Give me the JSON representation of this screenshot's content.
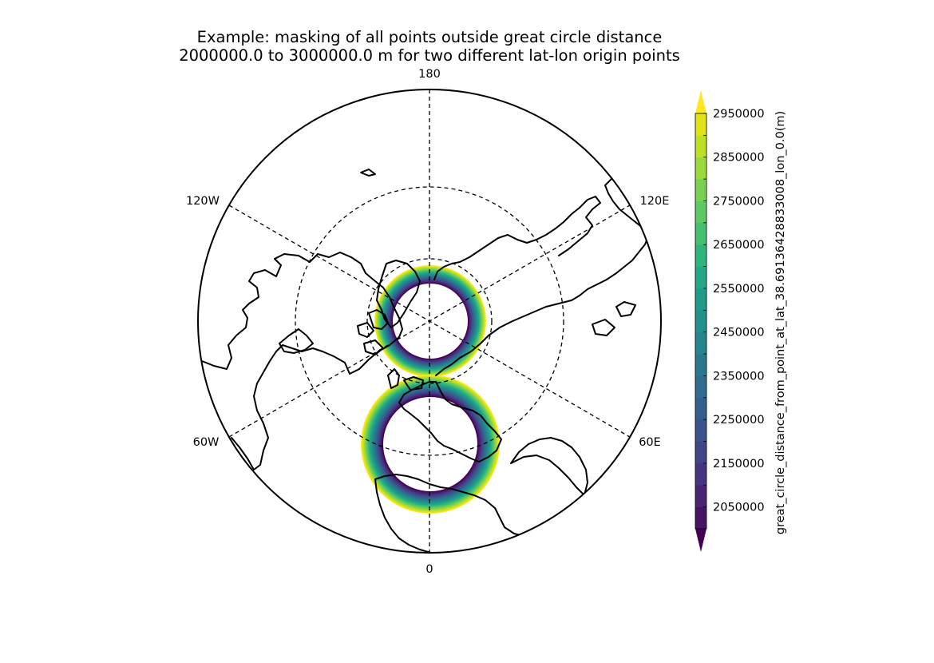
{
  "title_lines": [
    "Example: masking of all points outside great circle distance",
    "2000000.0 to 3000000.0 m for two different lat-lon origin points"
  ],
  "map": {
    "projection": "north polar stereographic",
    "lon_labels": {
      "top": "180",
      "bottom": "0",
      "upper_left": "120W",
      "upper_right": "120E",
      "lower_left": "60W",
      "lower_right": "60E"
    },
    "masked_rings": [
      {
        "origin": "north pole",
        "min_distance_m": 2000000,
        "max_distance_m": 3000000
      },
      {
        "origin": "lat 38.69 lon 0.0",
        "min_distance_m": 2000000,
        "max_distance_m": 3000000
      }
    ],
    "colors": {
      "coastline": "#000000",
      "graticule": "#000000",
      "background": "#ffffff"
    }
  },
  "colorbar": {
    "label": "great_circle_distance_from_point_at_lat_38.69136428833008_lon_0.0(m)",
    "tick_labels": [
      "2950000",
      "2850000",
      "2750000",
      "2650000",
      "2550000",
      "2450000",
      "2350000",
      "2250000",
      "2150000",
      "2050000"
    ],
    "levels": [
      2000000,
      2050000,
      2100000,
      2150000,
      2200000,
      2250000,
      2300000,
      2350000,
      2400000,
      2450000,
      2500000,
      2550000,
      2600000,
      2650000,
      2700000,
      2750000,
      2800000,
      2850000,
      2900000,
      2950000
    ],
    "extend": "both",
    "colormap": "viridis",
    "colors": [
      "#440154",
      "#471365",
      "#482475",
      "#463480",
      "#414487",
      "#3b528b",
      "#355f8d",
      "#2f6c8e",
      "#2a788e",
      "#25848e",
      "#21918c",
      "#1e9c89",
      "#22a884",
      "#2fb47c",
      "#44bf70",
      "#5ec962",
      "#7ad151",
      "#9bd93c",
      "#bddf26",
      "#dfe318",
      "#fde725"
    ]
  }
}
